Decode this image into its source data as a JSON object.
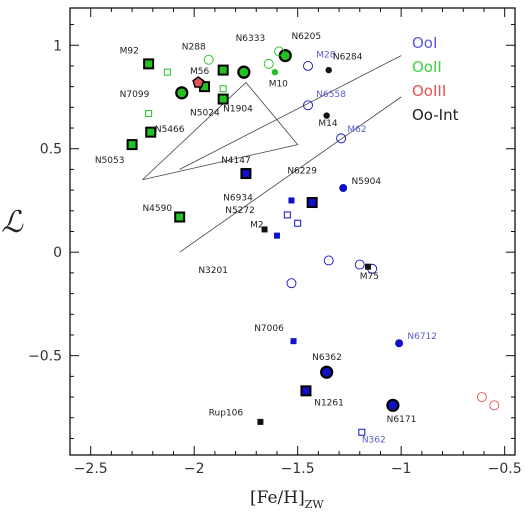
{
  "chart_data": {
    "type": "scatter",
    "xlabel": "[Fe/H]",
    "xlabel_sub": "ZW",
    "ylabel": "ℒ",
    "xlim": [
      -2.6,
      -0.45
    ],
    "ylim": [
      -0.98,
      1.18
    ],
    "xticks": [
      -2.5,
      -2.0,
      -1.5,
      -1.0,
      -0.5
    ],
    "xtick_labels": [
      "−2.5",
      "−2",
      "−1.5",
      "−1",
      "−0.5"
    ],
    "yticks": [
      -0.5,
      0,
      0.5,
      1
    ],
    "ytick_labels": [
      "−0.5",
      "0",
      "0.5",
      "1"
    ],
    "legend": {
      "position": "top-right",
      "entries": [
        {
          "name": "OoI",
          "color": "#5b5bd6"
        },
        {
          "name": "OoII",
          "color": "#3fd13f"
        },
        {
          "name": "OoIII",
          "color": "#e05555"
        },
        {
          "name": "Oo-Int",
          "color": "#222222"
        }
      ]
    },
    "lines": [
      {
        "points": [
          [
            -2.07,
            0.0
          ],
          [
            -1.0,
            0.75
          ]
        ]
      },
      {
        "points": [
          [
            -2.07,
            0.4
          ],
          [
            -1.0,
            0.95
          ]
        ]
      },
      {
        "points": [
          [
            -2.25,
            0.35
          ],
          [
            -1.5,
            0.52
          ],
          [
            -1.75,
            0.82
          ],
          [
            -2.25,
            0.35
          ]
        ]
      }
    ],
    "series": [
      {
        "name": "OoI",
        "color": "#1010c8",
        "points": [
          {
            "x": -1.75,
            "y": 0.38,
            "label": "N4147",
            "marker": "square-filled-outlined",
            "lx": -1.87,
            "ly": 0.43,
            "lcolor": "#222"
          },
          {
            "x": -1.43,
            "y": 0.24,
            "label": "N6229",
            "marker": "square-filled-outlined",
            "lx": -1.55,
            "ly": 0.38,
            "lcolor": "#222"
          },
          {
            "x": -1.53,
            "y": 0.25,
            "label": "N6934",
            "marker": "small-square-filled",
            "lx": -1.86,
            "ly": 0.25,
            "lcolor": "#222"
          },
          {
            "x": -1.55,
            "y": 0.18,
            "label": "N5272",
            "marker": "small-square-open",
            "lx": -1.85,
            "ly": 0.19,
            "lcolor": "#222"
          },
          {
            "x": -1.6,
            "y": 0.08,
            "label": "",
            "marker": "small-square-filled"
          },
          {
            "x": -1.28,
            "y": 0.31,
            "label": "N5904",
            "marker": "circle-filled",
            "lx": -1.24,
            "ly": 0.33,
            "lcolor": "#222"
          },
          {
            "x": -1.45,
            "y": 0.9,
            "label": "M28",
            "marker": "circle-open",
            "lx": -1.41,
            "ly": 0.94,
            "lcolor": "#5b5bd6"
          },
          {
            "x": -1.45,
            "y": 0.71,
            "label": "N6558",
            "marker": "circle-open",
            "lx": -1.41,
            "ly": 0.75,
            "lcolor": "#5b5bd6"
          },
          {
            "x": -1.29,
            "y": 0.55,
            "label": "M62",
            "marker": "circle-open",
            "lx": -1.26,
            "ly": 0.58,
            "lcolor": "#5b5bd6"
          },
          {
            "x": -1.5,
            "y": 0.14,
            "label": "",
            "marker": "small-square-open"
          },
          {
            "x": -1.35,
            "y": -0.04,
            "label": "",
            "marker": "circle-open"
          },
          {
            "x": -1.2,
            "y": -0.06,
            "label": "",
            "marker": "circle-open"
          },
          {
            "x": -1.14,
            "y": -0.08,
            "label": "",
            "marker": "circle-open"
          },
          {
            "x": -1.53,
            "y": -0.15,
            "label": "",
            "marker": "circle-open"
          },
          {
            "x": -1.52,
            "y": -0.43,
            "label": "N7006",
            "marker": "small-square-filled",
            "lx": -1.71,
            "ly": -0.38,
            "lcolor": "#222"
          },
          {
            "x": -1.01,
            "y": -0.44,
            "label": "N6712",
            "marker": "circle-filled",
            "lx": -0.97,
            "ly": -0.42,
            "lcolor": "#5b5bd6"
          },
          {
            "x": -1.36,
            "y": -0.58,
            "label": "N6362",
            "marker": "circle-filled-outlined",
            "lx": -1.43,
            "ly": -0.52,
            "lcolor": "#222"
          },
          {
            "x": -1.46,
            "y": -0.67,
            "label": "N1261",
            "marker": "square-filled-outlined",
            "lx": -1.42,
            "ly": -0.74,
            "lcolor": "#222"
          },
          {
            "x": -1.04,
            "y": -0.74,
            "label": "N6171",
            "marker": "circle-filled-outlined",
            "lx": -1.07,
            "ly": -0.82,
            "lcolor": "#222"
          },
          {
            "x": -1.19,
            "y": -0.87,
            "label": "N362",
            "marker": "small-square-open",
            "lx": -1.19,
            "ly": -0.92,
            "lcolor": "#5b5bd6"
          }
        ]
      },
      {
        "name": "OoII",
        "color": "#22c022",
        "points": [
          {
            "x": -2.22,
            "y": 0.91,
            "label": "M92",
            "marker": "square-filled-outlined",
            "lx": -2.36,
            "ly": 0.96,
            "lcolor": "#222"
          },
          {
            "x": -1.86,
            "y": 0.88,
            "label": "N288",
            "marker": "square-filled-outlined",
            "lx": -2.06,
            "ly": 0.98,
            "lcolor": "#222"
          },
          {
            "x": -1.76,
            "y": 0.87,
            "label": "N6333",
            "marker": "circle-filled-outlined",
            "lx": -1.8,
            "ly": 1.02,
            "lcolor": "#222"
          },
          {
            "x": -1.56,
            "y": 0.95,
            "label": "N6205",
            "marker": "circle-filled-outlined",
            "lx": -1.53,
            "ly": 1.03,
            "lcolor": "#222"
          },
          {
            "x": -2.06,
            "y": 0.77,
            "label": "N7099",
            "marker": "circle-filled-outlined",
            "lx": -2.36,
            "ly": 0.75,
            "lcolor": "#222"
          },
          {
            "x": -1.86,
            "y": 0.74,
            "label": "N1904",
            "marker": "square-filled-outlined",
            "lx": -1.86,
            "ly": 0.68,
            "lcolor": "#222"
          },
          {
            "x": -2.21,
            "y": 0.58,
            "label": "N5466",
            "marker": "square-filled-outlined",
            "lx": -2.19,
            "ly": 0.58,
            "lcolor": "#222"
          },
          {
            "x": -2.3,
            "y": 0.52,
            "label": "N5053",
            "marker": "square-filled-outlined",
            "lx": -2.48,
            "ly": 0.43,
            "lcolor": "#222"
          },
          {
            "x": -2.07,
            "y": 0.17,
            "label": "N4590",
            "marker": "square-filled-outlined",
            "lx": -2.25,
            "ly": 0.2,
            "lcolor": "#222"
          },
          {
            "x": -1.61,
            "y": 0.87,
            "label": "M10",
            "marker": "circle-small-filled",
            "lx": -1.64,
            "ly": 0.8,
            "lcolor": "#222"
          },
          {
            "x": -1.95,
            "y": 0.8,
            "label": "",
            "marker": "square-filled-outlined"
          },
          {
            "x": -2.13,
            "y": 0.87,
            "label": "",
            "marker": "small-square-open"
          },
          {
            "x": -1.93,
            "y": 0.93,
            "label": "",
            "marker": "circle-open"
          },
          {
            "x": -1.86,
            "y": 0.79,
            "label": "",
            "marker": "small-square-open"
          },
          {
            "x": -1.64,
            "y": 0.91,
            "label": "",
            "marker": "circle-open"
          },
          {
            "x": -1.59,
            "y": 0.97,
            "label": "",
            "marker": "circle-open"
          },
          {
            "x": -2.22,
            "y": 0.67,
            "label": "",
            "marker": "small-square-open"
          }
        ]
      },
      {
        "name": "OoIII",
        "color": "#e05555",
        "points": [
          {
            "x": -1.98,
            "y": 0.82,
            "label": "",
            "marker": "pentagon-filled"
          },
          {
            "x": -0.61,
            "y": -0.7,
            "label": "",
            "marker": "circle-open"
          },
          {
            "x": -0.55,
            "y": -0.74,
            "label": "",
            "marker": "circle-open"
          }
        ]
      },
      {
        "name": "Oo-Int",
        "color": "#111111",
        "points": [
          {
            "x": -1.35,
            "y": 0.88,
            "label": "N6284",
            "marker": "circle-small-filled",
            "lx": -1.33,
            "ly": 0.93,
            "lcolor": "#222"
          },
          {
            "x": -1.36,
            "y": 0.66,
            "label": "M14",
            "marker": "circle-small-filled",
            "lx": -1.4,
            "ly": 0.61,
            "lcolor": "#222"
          },
          {
            "x": -1.66,
            "y": 0.11,
            "label": "M2",
            "marker": "small-square-filled",
            "lx": -1.73,
            "ly": 0.12,
            "lcolor": "#222"
          },
          {
            "x": -1.16,
            "y": -0.07,
            "label": "M75",
            "marker": "small-square-filled",
            "lx": -1.2,
            "ly": -0.13,
            "lcolor": "#222"
          },
          {
            "x": -1.68,
            "y": -0.82,
            "label": "Rup106",
            "marker": "small-square-filled",
            "lx": -1.93,
            "ly": -0.79,
            "lcolor": "#222"
          },
          {
            "x": -1.68,
            "y": 0.03,
            "label": "N3201",
            "marker": "none",
            "lx": -1.98,
            "ly": -0.1,
            "lcolor": "#222"
          },
          {
            "x": -1.97,
            "y": 0.82,
            "label": "M56",
            "marker": "none",
            "lx": -2.02,
            "ly": 0.86,
            "lcolor": "#222"
          },
          {
            "x": -1.93,
            "y": 0.8,
            "label": "N5024",
            "marker": "none",
            "lx": -2.02,
            "ly": 0.66,
            "lcolor": "#222"
          }
        ]
      }
    ]
  }
}
